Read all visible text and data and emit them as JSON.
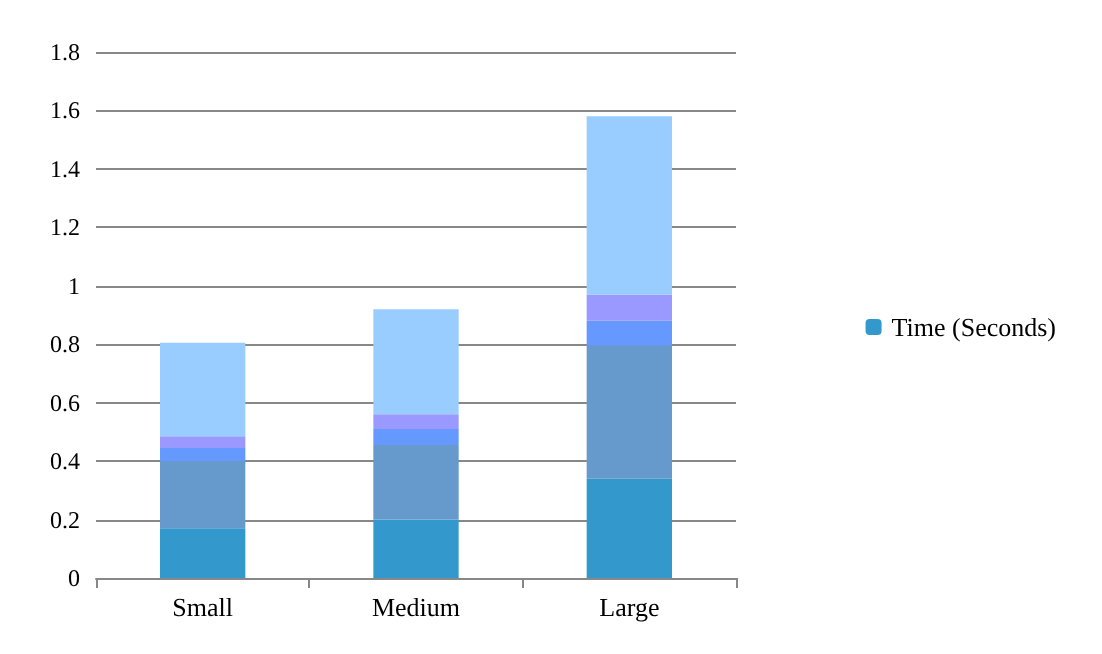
{
  "chart_data": {
    "type": "bar",
    "stacked": true,
    "categories": [
      "Small",
      "Medium",
      "Large"
    ],
    "series": [
      {
        "name": "Time (Seconds)",
        "color": "#3399cc",
        "values": [
          0.17,
          0.2,
          0.34
        ]
      },
      {
        "color": "#6699cc",
        "values": [
          0.23,
          0.255,
          0.455
        ]
      },
      {
        "color": "#6699ff",
        "values": [
          0.045,
          0.055,
          0.085
        ]
      },
      {
        "color": "#9999ff",
        "values": [
          0.04,
          0.05,
          0.09
        ]
      },
      {
        "color": "#99ccff",
        "values": [
          0.32,
          0.36,
          0.61
        ]
      }
    ],
    "ylim": [
      0,
      1.8
    ],
    "yticks": [
      0,
      0.2,
      0.4,
      0.6,
      0.8,
      1,
      1.2,
      1.4,
      1.6,
      1.8
    ],
    "grid": "y",
    "legend": "right"
  }
}
